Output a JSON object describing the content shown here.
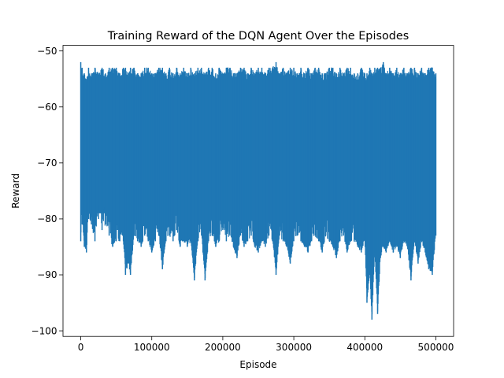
{
  "chart_data": {
    "type": "line",
    "title": "Training Reward of the DQN Agent Over the Episodes",
    "xlabel": "Episode",
    "ylabel": "Reward",
    "xlim": [
      -25000,
      525000
    ],
    "ylim": [
      -101,
      -49
    ],
    "xticks": [
      0,
      100000,
      200000,
      300000,
      400000,
      500000
    ],
    "xtick_labels": [
      "0",
      "100000",
      "200000",
      "300000",
      "400000",
      "500000"
    ],
    "yticks": [
      -100,
      -90,
      -80,
      -70,
      -60,
      -50
    ],
    "ytick_labels": [
      "−100",
      "−90",
      "−80",
      "−70",
      "−60",
      "−50"
    ],
    "grid": false,
    "series": [
      {
        "color": "#1f77b4",
        "x": [
          0,
          2000,
          5000,
          8000,
          11000,
          15000,
          20000,
          25000,
          30000,
          35000,
          40000,
          45000,
          50000,
          55000,
          60000,
          63000,
          67000,
          70000,
          75000,
          80000,
          85000,
          90000,
          95000,
          100000,
          105000,
          110000,
          115000,
          120000,
          125000,
          130000,
          135000,
          140000,
          145000,
          150000,
          155000,
          160000,
          165000,
          170000,
          175000,
          180000,
          185000,
          190000,
          195000,
          200000,
          205000,
          210000,
          215000,
          220000,
          225000,
          230000,
          235000,
          240000,
          245000,
          250000,
          255000,
          260000,
          265000,
          270000,
          275000,
          280000,
          285000,
          290000,
          295000,
          300000,
          305000,
          310000,
          315000,
          320000,
          325000,
          330000,
          335000,
          340000,
          345000,
          350000,
          355000,
          360000,
          365000,
          370000,
          375000,
          380000,
          385000,
          390000,
          395000,
          400000,
          403000,
          407000,
          410000,
          414000,
          418000,
          422000,
          426000,
          430000,
          435000,
          440000,
          445000,
          450000,
          455000,
          460000,
          465000,
          470000,
          475000,
          480000,
          485000,
          490000,
          495000,
          500000
        ],
        "min": [
          -84,
          -81,
          -85,
          -86,
          -80,
          -81,
          -84,
          -80,
          -82,
          -81,
          -83,
          -85,
          -84,
          -84,
          -84,
          -90,
          -88,
          -90,
          -83,
          -84,
          -85,
          -83,
          -84,
          -86,
          -84,
          -83,
          -89,
          -84,
          -83,
          -84,
          -82,
          -85,
          -84,
          -85,
          -84,
          -91,
          -84,
          -83,
          -91,
          -84,
          -83,
          -85,
          -84,
          -82,
          -84,
          -83,
          -85,
          -87,
          -83,
          -85,
          -84,
          -83,
          -85,
          -86,
          -84,
          -85,
          -83,
          -84,
          -90,
          -83,
          -84,
          -85,
          -88,
          -84,
          -83,
          -84,
          -85,
          -86,
          -84,
          -83,
          -84,
          -86,
          -83,
          -84,
          -85,
          -87,
          -84,
          -83,
          -86,
          -84,
          -84,
          -85,
          -86,
          -84,
          -95,
          -90,
          -98,
          -86,
          -97,
          -87,
          -85,
          -86,
          -84,
          -86,
          -85,
          -87,
          -84,
          -85,
          -91,
          -84,
          -88,
          -84,
          -86,
          -89,
          -90,
          -83
        ],
        "max": [
          -52,
          -53,
          -54,
          -55,
          -53,
          -54,
          -53,
          -54,
          -53,
          -54,
          -53,
          -53,
          -53,
          -54,
          -53,
          -53,
          -54,
          -53,
          -53,
          -54,
          -54,
          -53,
          -53,
          -54,
          -54,
          -53,
          -53,
          -54,
          -53,
          -54,
          -53,
          -54,
          -53,
          -54,
          -53,
          -54,
          -53,
          -53,
          -54,
          -53,
          -53,
          -54,
          -53,
          -54,
          -53,
          -53,
          -54,
          -54,
          -53,
          -53,
          -54,
          -53,
          -54,
          -53,
          -53,
          -54,
          -53,
          -53,
          -52,
          -54,
          -53,
          -54,
          -53,
          -53,
          -54,
          -53,
          -54,
          -53,
          -54,
          -53,
          -53,
          -54,
          -54,
          -53,
          -53,
          -54,
          -53,
          -54,
          -53,
          -53,
          -54,
          -54,
          -53,
          -54,
          -54,
          -53,
          -54,
          -53,
          -53,
          -53,
          -52,
          -54,
          -53,
          -54,
          -53,
          -54,
          -53,
          -54,
          -53,
          -53,
          -54,
          -53,
          -54,
          -53,
          -53,
          -54
        ]
      }
    ]
  }
}
